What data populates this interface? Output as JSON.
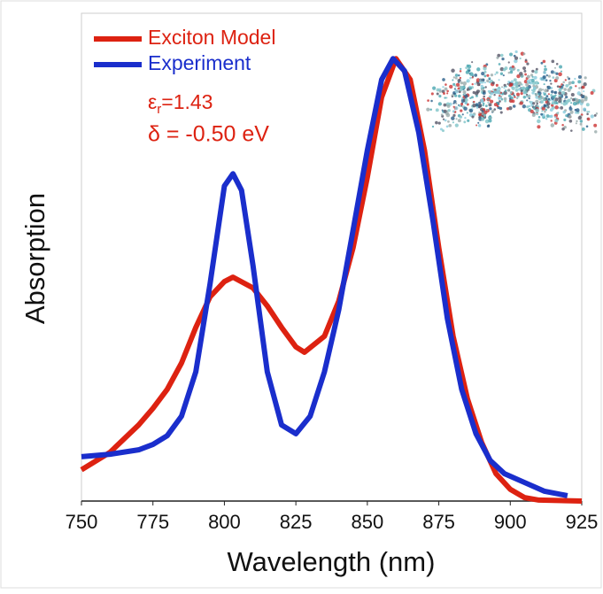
{
  "chart_data": {
    "type": "line",
    "x_label": "Wavelength (nm)",
    "y_label": "Absorption",
    "xlim": [
      750,
      925
    ],
    "xticks": [
      750,
      775,
      800,
      825,
      850,
      875,
      900,
      925
    ],
    "ylim": [
      0,
      1
    ],
    "legend": "upper-left",
    "series": [
      {
        "name": "Exciton Model",
        "color": "#dd2211",
        "x": [
          750,
          760,
          770,
          775,
          780,
          785,
          790,
          795,
          800,
          803,
          810,
          815,
          820,
          825,
          828,
          835,
          840,
          845,
          850,
          855,
          860,
          865,
          870,
          875,
          880,
          885,
          890,
          895,
          900,
          905,
          910,
          925
        ],
        "values": [
          0.064,
          0.1,
          0.156,
          0.19,
          0.229,
          0.283,
          0.356,
          0.419,
          0.45,
          0.459,
          0.437,
          0.4,
          0.356,
          0.316,
          0.305,
          0.338,
          0.41,
          0.519,
          0.664,
          0.828,
          0.907,
          0.864,
          0.719,
          0.519,
          0.338,
          0.21,
          0.12,
          0.056,
          0.024,
          0.007,
          0.002,
          0
        ]
      },
      {
        "name": "Experiment",
        "color": "#1a2ecc",
        "x": [
          750,
          760,
          770,
          775,
          780,
          785,
          790,
          795,
          800,
          803,
          806,
          810,
          815,
          820,
          825,
          830,
          835,
          840,
          845,
          850,
          855,
          859,
          863,
          868,
          873,
          878,
          883,
          888,
          893,
          898,
          905,
          912,
          920
        ],
        "values": [
          0.091,
          0.096,
          0.105,
          0.116,
          0.134,
          0.174,
          0.265,
          0.446,
          0.646,
          0.671,
          0.637,
          0.483,
          0.265,
          0.156,
          0.138,
          0.174,
          0.265,
          0.392,
          0.555,
          0.719,
          0.864,
          0.907,
          0.882,
          0.755,
          0.573,
          0.374,
          0.229,
          0.138,
          0.083,
          0.056,
          0.038,
          0.02,
          0.011
        ]
      }
    ],
    "annotations": [
      [
        "ε",
        "r",
        "=1.43"
      ],
      [
        "δ = -0.50 eV"
      ]
    ]
  }
}
